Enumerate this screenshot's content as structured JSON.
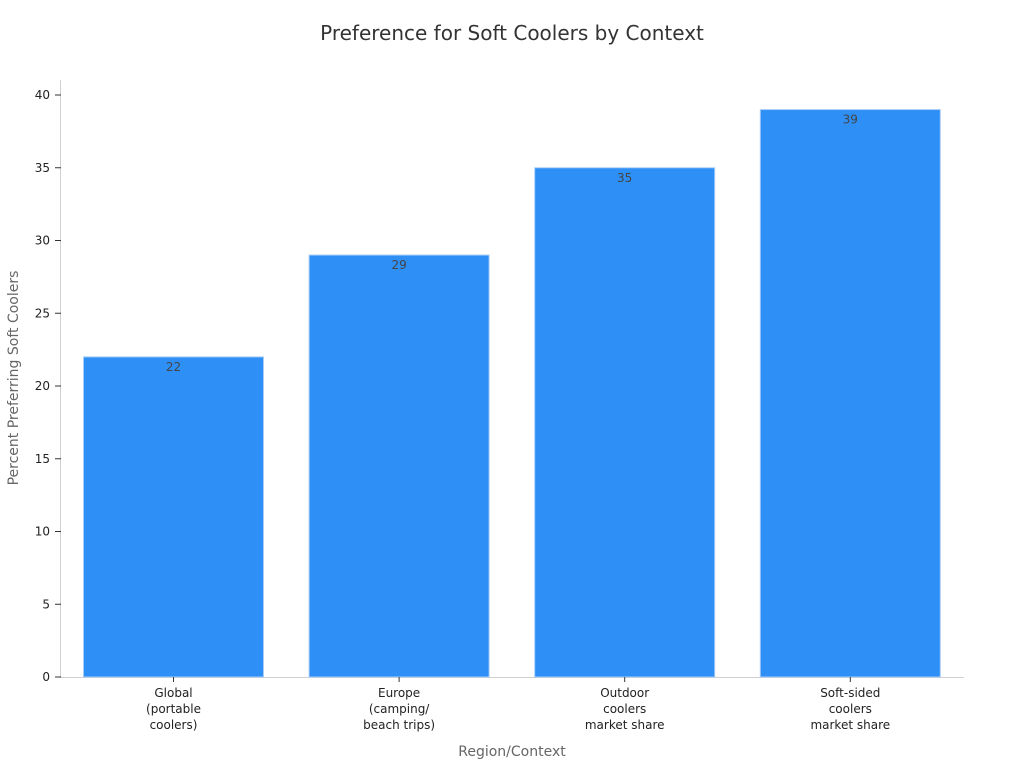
{
  "chart_data": {
    "type": "bar",
    "title": "Preference for Soft Coolers by Context",
    "xlabel": "Region/Context",
    "ylabel": "Percent Preferring Soft Coolers",
    "categories": [
      "Global\n(portable\ncoolers)",
      "Europe\n(camping/\nbeach trips)",
      "Outdoor\ncoolers\nmarket share",
      "Soft-sided\ncoolers\nmarket share"
    ],
    "values": [
      22,
      29,
      35,
      39
    ],
    "data_labels": [
      "22",
      "29",
      "35",
      "39"
    ],
    "ylim": [
      0,
      40
    ],
    "yticks": [
      0,
      5,
      10,
      15,
      20,
      25,
      30,
      35,
      40
    ],
    "grid": false,
    "legend": "none",
    "colors": {
      "bar": "#2e8ff7",
      "bar_edge": "#a8cdf7"
    }
  }
}
